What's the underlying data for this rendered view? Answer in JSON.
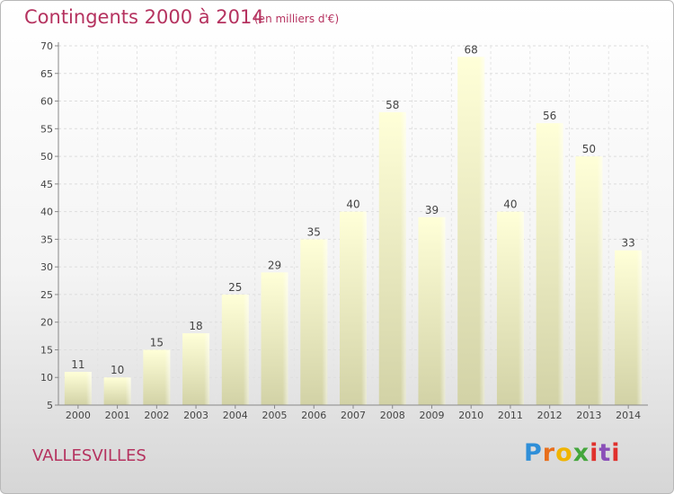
{
  "header": {
    "title": "Contingents 2000 à 2014",
    "subtitle": "(en milliers d'€)"
  },
  "footer": {
    "commune": "VALLESVILLES",
    "logo": "Proxiti"
  },
  "colors": {
    "accent": "#b5325f",
    "bar_top": "#ffffd8",
    "bar_bottom": "#d2d2a6"
  },
  "chart_data": {
    "type": "bar",
    "title": "Contingents 2000 à 2014",
    "subtitle": "(en milliers d'€)",
    "categories": [
      "2000",
      "2001",
      "2002",
      "2003",
      "2004",
      "2005",
      "2006",
      "2007",
      "2008",
      "2009",
      "2010",
      "2011",
      "2012",
      "2013",
      "2014"
    ],
    "values": [
      11,
      10,
      15,
      18,
      25,
      29,
      35,
      40,
      58,
      39,
      68,
      40,
      56,
      50,
      33
    ],
    "ylim": [
      5,
      70
    ],
    "yticks": [
      5,
      10,
      15,
      20,
      25,
      30,
      35,
      40,
      45,
      50,
      55,
      60,
      65,
      70
    ],
    "grid": true
  }
}
